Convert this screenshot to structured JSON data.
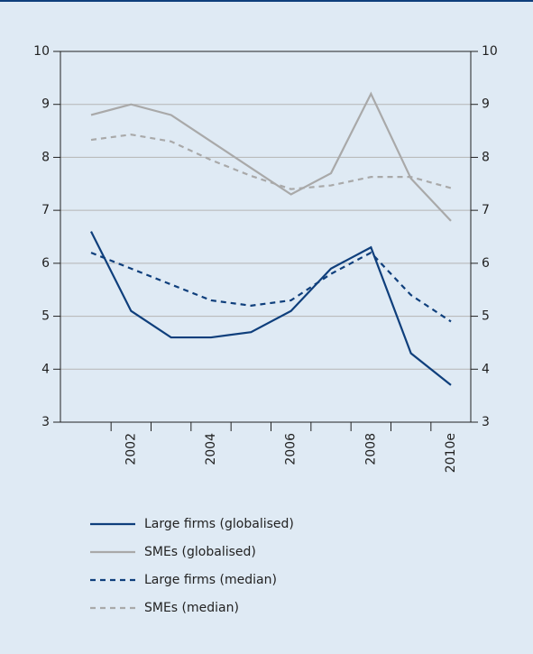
{
  "chart_data": {
    "type": "line",
    "categories": [
      null,
      "2002",
      null,
      "2004",
      null,
      "2006",
      null,
      "2008",
      null,
      "2010e"
    ],
    "series": [
      {
        "name": "Large firms (globalised)",
        "color": "#0f3f7c",
        "dash": false,
        "values": [
          6.6,
          5.1,
          4.6,
          4.6,
          4.7,
          5.1,
          5.9,
          6.3,
          4.3,
          3.7
        ]
      },
      {
        "name": "SMEs (globalised)",
        "color": "#a9a9a9",
        "dash": false,
        "values": [
          8.8,
          9.0,
          8.8,
          8.3,
          7.8,
          7.3,
          7.7,
          9.2,
          7.6,
          6.8
        ]
      },
      {
        "name": "Large firms (median)",
        "color": "#0f3f7c",
        "dash": true,
        "values": [
          6.2,
          5.9,
          5.6,
          5.3,
          5.2,
          5.3,
          5.8,
          6.2,
          5.4,
          4.9
        ]
      },
      {
        "name": "SMEs (median)",
        "color": "#a9a9a9",
        "dash": true,
        "values": [
          8.33,
          8.43,
          8.3,
          7.95,
          7.65,
          7.4,
          7.47,
          7.63,
          7.63,
          7.42
        ]
      }
    ],
    "ylim": [
      3,
      10
    ],
    "yticks": [
      3,
      4,
      5,
      6,
      7,
      8,
      9,
      10
    ],
    "y2lim": [
      3,
      10
    ],
    "y2ticks": [
      3,
      4,
      5,
      6,
      7,
      8,
      9,
      10
    ],
    "grid": true,
    "legend": "bottom"
  }
}
